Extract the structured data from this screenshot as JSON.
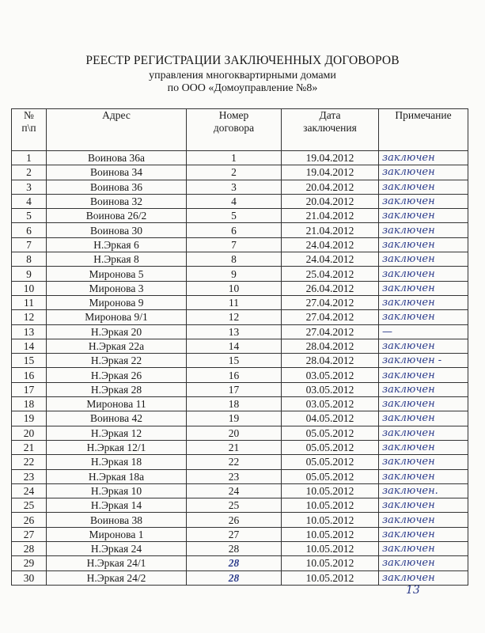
{
  "title": "РЕЕСТР РЕГИСТРАЦИИ ЗАКЛЮЧЕННЫХ ДОГОВОРОВ",
  "subtitle1": "управления многоквартирными домами",
  "subtitle2": "по ООО «Домоуправление №8»",
  "headers": {
    "num_line1": "№",
    "num_line2": "п\\п",
    "address": "Адрес",
    "contract_line1": "Номер",
    "contract_line2": "договора",
    "date_line1": "Дата",
    "date_line2": "заключения",
    "note": "Примечание"
  },
  "rows": [
    {
      "n": "1",
      "address": "Воинова 36а",
      "contract": "1",
      "date": "19.04.2012",
      "note": "заключен"
    },
    {
      "n": "2",
      "address": "Воинова 34",
      "contract": "2",
      "date": "19.04.2012",
      "note": "заключен"
    },
    {
      "n": "3",
      "address": "Воинова 36",
      "contract": "3",
      "date": "20.04.2012",
      "note": "заключен"
    },
    {
      "n": "4",
      "address": "Воинова 32",
      "contract": "4",
      "date": "20.04.2012",
      "note": "заключен"
    },
    {
      "n": "5",
      "address": "Воинова 26/2",
      "contract": "5",
      "date": "21.04.2012",
      "note": "заключен"
    },
    {
      "n": "6",
      "address": "Воинова 30",
      "contract": "6",
      "date": "21.04.2012",
      "note": "заключен"
    },
    {
      "n": "7",
      "address": "Н.Эркая 6",
      "contract": "7",
      "date": "24.04.2012",
      "note": "заключен"
    },
    {
      "n": "8",
      "address": "Н.Эркая 8",
      "contract": "8",
      "date": "24.04.2012",
      "note": "заключен"
    },
    {
      "n": "9",
      "address": "Миронова 5",
      "contract": "9",
      "date": "25.04.2012",
      "note": "заключен"
    },
    {
      "n": "10",
      "address": "Миронова 3",
      "contract": "10",
      "date": "26.04.2012",
      "note": "заключен"
    },
    {
      "n": "11",
      "address": "Миронова 9",
      "contract": "11",
      "date": "27.04.2012",
      "note": "заключен"
    },
    {
      "n": "12",
      "address": "Миронова 9/1",
      "contract": "12",
      "date": "27.04.2012",
      "note": "заключен"
    },
    {
      "n": "13",
      "address": "Н.Эркая 20",
      "contract": "13",
      "date": "27.04.2012",
      "note": "—"
    },
    {
      "n": "14",
      "address": "Н.Эркая 22а",
      "contract": "14",
      "date": "28.04.2012",
      "note": "заключен"
    },
    {
      "n": "15",
      "address": "Н.Эркая 22",
      "contract": "15",
      "date": "28.04.2012",
      "note": "заключен -"
    },
    {
      "n": "16",
      "address": "Н.Эркая 26",
      "contract": "16",
      "date": "03.05.2012",
      "note": "заключен"
    },
    {
      "n": "17",
      "address": "Н.Эркая 28",
      "contract": "17",
      "date": "03.05.2012",
      "note": "заключен"
    },
    {
      "n": "18",
      "address": "Миронова 11",
      "contract": "18",
      "date": "03.05.2012",
      "note": "заключен"
    },
    {
      "n": "19",
      "address": "Воинова 42",
      "contract": "19",
      "date": "04.05.2012",
      "note": "заключен"
    },
    {
      "n": "20",
      "address": "Н.Эркая 12",
      "contract": "20",
      "date": "05.05.2012",
      "note": "заключен"
    },
    {
      "n": "21",
      "address": "Н.Эркая 12/1",
      "contract": "21",
      "date": "05.05.2012",
      "note": "заключен"
    },
    {
      "n": "22",
      "address": "Н.Эркая 18",
      "contract": "22",
      "date": "05.05.2012",
      "note": "заключен"
    },
    {
      "n": "23",
      "address": "Н.Эркая 18а",
      "contract": "23",
      "date": "05.05.2012",
      "note": "заключен"
    },
    {
      "n": "24",
      "address": "Н.Эркая 10",
      "contract": "24",
      "date": "10.05.2012",
      "note": "заключен."
    },
    {
      "n": "25",
      "address": "Н.Эркая 14",
      "contract": "25",
      "date": "10.05.2012",
      "note": "заключен"
    },
    {
      "n": "26",
      "address": "Воинова 38",
      "contract": "26",
      "date": "10.05.2012",
      "note": "заключен"
    },
    {
      "n": "27",
      "address": "Миронова 1",
      "contract": "27",
      "date": "10.05.2012",
      "note": "заключен"
    },
    {
      "n": "28",
      "address": "Н.Эркая 24",
      "contract": "28",
      "date": "10.05.2012",
      "note": "заключен"
    },
    {
      "n": "29",
      "address": "Н.Эркая 24/1",
      "contract": "28",
      "date": "10.05.2012",
      "note": "заключен"
    },
    {
      "n": "30",
      "address": "Н.Эркая 24/2",
      "contract": "28",
      "date": "10.05.2012",
      "note": "заключен"
    }
  ],
  "page_number": "13"
}
